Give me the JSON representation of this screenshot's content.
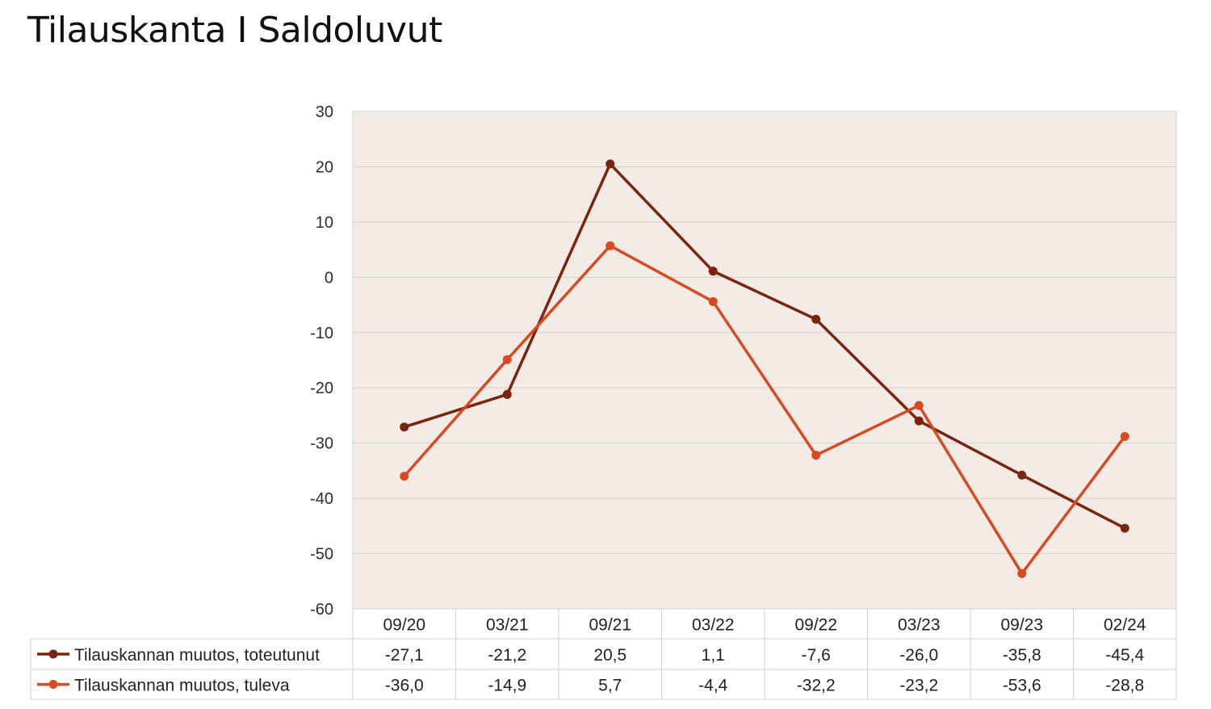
{
  "title": "Tilauskanta I Saldoluvut",
  "chart_data": {
    "type": "line",
    "title": "Tilauskanta I Saldoluvut",
    "categories": [
      "09/20",
      "03/21",
      "09/21",
      "03/22",
      "09/22",
      "03/23",
      "09/23",
      "02/24"
    ],
    "ylim": [
      -60,
      30
    ],
    "yticks": [
      30,
      20,
      10,
      0,
      -10,
      -20,
      -30,
      -40,
      -50,
      -60
    ],
    "grid": true,
    "legend": "data-table",
    "series": [
      {
        "name": "Tilauskannan muutos, toteutunut",
        "color": "#7b2410",
        "values": [
          -27.1,
          -21.2,
          20.5,
          1.1,
          -7.6,
          -26.0,
          -35.8,
          -45.4
        ],
        "labels": [
          "-27,1",
          "-21,2",
          "20,5",
          "1,1",
          "-7,6",
          "-26,0",
          "-35,8",
          "-45,4"
        ]
      },
      {
        "name": "Tilauskannan muutos, tuleva",
        "color": "#d84a22",
        "values": [
          -36.0,
          -14.9,
          5.7,
          -4.4,
          -32.2,
          -23.2,
          -53.6,
          -28.8
        ],
        "labels": [
          "-36,0",
          "-14,9",
          "5,7",
          "-4,4",
          "-32,2",
          "-23,2",
          "-53,6",
          "-28,8"
        ]
      }
    ],
    "plot_background": "#f2ebe6",
    "grid_color": "#d4d0cd"
  }
}
